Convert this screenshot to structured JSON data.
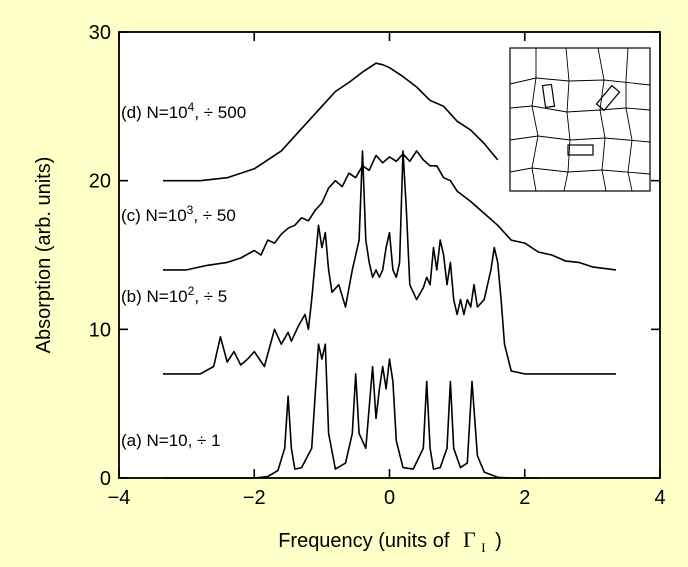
{
  "colors": {
    "background": "#ffffc8",
    "plot_area": "#ffffff",
    "ink": "#000000"
  },
  "chart_data": {
    "type": "line",
    "title": "",
    "xlabel_text": "Frequency (units of",
    "xlabel_symbol": "Γ",
    "xlabel_subscript": "I",
    "xlabel_close": ")",
    "ylabel": "Absorption (arb. units)",
    "xlim": [
      -4,
      4
    ],
    "ylim": [
      0,
      30
    ],
    "xticks": [
      -4,
      -2,
      0,
      2,
      4
    ],
    "xtick_labels": [
      "−4",
      "−2",
      "0",
      "2",
      "4"
    ],
    "yticks": [
      0,
      10,
      20,
      30
    ],
    "ytick_labels": [
      "0",
      "10",
      "20",
      "30"
    ],
    "grid": false,
    "series": [
      {
        "label_prefix": "(a) N=10, ÷ 1",
        "label_sup": "",
        "label_suffix": "",
        "x": [
          -3.35,
          -2.5,
          -2.0,
          -1.8,
          -1.65,
          -1.55,
          -1.5,
          -1.45,
          -1.4,
          -1.3,
          -1.15,
          -1.05,
          -1.0,
          -0.95,
          -0.9,
          -0.8,
          -0.65,
          -0.55,
          -0.5,
          -0.45,
          -0.35,
          -0.25,
          -0.2,
          -0.15,
          -0.1,
          -0.05,
          0.0,
          0.05,
          0.1,
          0.2,
          0.35,
          0.5,
          0.55,
          0.6,
          0.65,
          0.75,
          0.85,
          0.9,
          0.95,
          1.05,
          1.15,
          1.22,
          1.3,
          1.4,
          1.6,
          1.8,
          2.2
        ],
        "y": [
          0,
          0,
          0,
          0.1,
          0.5,
          2.0,
          5.5,
          2.0,
          0.6,
          0.7,
          2.0,
          9.0,
          8.0,
          9.0,
          3.0,
          0.6,
          1.0,
          3.0,
          7.0,
          3.0,
          2.0,
          7.5,
          4.0,
          6.0,
          7.5,
          6.0,
          8.0,
          6.5,
          2.5,
          0.7,
          0.6,
          2.0,
          6.5,
          2.0,
          0.6,
          0.7,
          2.0,
          6.5,
          2.0,
          0.7,
          1.0,
          6.5,
          1.5,
          0.4,
          0.05,
          0,
          0
        ]
      },
      {
        "label_prefix": "(b) N=10",
        "label_sup": "2",
        "label_suffix": ", ÷ 5",
        "x": [
          -3.35,
          -2.8,
          -2.6,
          -2.5,
          -2.4,
          -2.3,
          -2.2,
          -2.1,
          -2.0,
          -1.85,
          -1.7,
          -1.6,
          -1.5,
          -1.45,
          -1.35,
          -1.25,
          -1.2,
          -1.15,
          -1.05,
          -1.0,
          -0.95,
          -0.9,
          -0.85,
          -0.75,
          -0.65,
          -0.55,
          -0.5,
          -0.45,
          -0.4,
          -0.35,
          -0.3,
          -0.25,
          -0.2,
          -0.15,
          -0.1,
          -0.05,
          0.0,
          0.05,
          0.1,
          0.15,
          0.2,
          0.25,
          0.3,
          0.4,
          0.5,
          0.55,
          0.6,
          0.65,
          0.7,
          0.75,
          0.8,
          0.85,
          0.9,
          0.95,
          1.0,
          1.05,
          1.1,
          1.15,
          1.2,
          1.25,
          1.3,
          1.4,
          1.5,
          1.55,
          1.6,
          1.65,
          1.7,
          1.8,
          2.0,
          2.4,
          3.35
        ],
        "y": [
          7,
          7,
          7.5,
          9.5,
          7.8,
          8.5,
          7.6,
          8.0,
          8.5,
          7.5,
          10.0,
          9.0,
          9.8,
          9.2,
          10.2,
          11.0,
          10.0,
          12.0,
          17.0,
          15.5,
          16.5,
          14.0,
          12.5,
          13.0,
          11.5,
          14.0,
          15.0,
          16.0,
          22.0,
          16.0,
          14.5,
          13.5,
          14.0,
          13.5,
          14.0,
          15.5,
          16.5,
          14.0,
          13.5,
          14.5,
          22.0,
          18.0,
          13.0,
          12.0,
          12.8,
          13.5,
          13.0,
          15.5,
          14.0,
          16.0,
          15.0,
          13.0,
          14.5,
          12.0,
          11.0,
          12.0,
          11.0,
          12.0,
          11.5,
          13.0,
          11.5,
          12.0,
          14.0,
          15.5,
          14.5,
          12.0,
          9.0,
          7.2,
          7,
          7,
          7
        ]
      },
      {
        "label_prefix": "(c) N=10",
        "label_sup": "3",
        "label_suffix": ", ÷ 50",
        "x": [
          -3.35,
          -3.0,
          -2.7,
          -2.4,
          -2.2,
          -2.0,
          -1.9,
          -1.8,
          -1.7,
          -1.6,
          -1.5,
          -1.4,
          -1.3,
          -1.2,
          -1.1,
          -1.0,
          -0.9,
          -0.8,
          -0.7,
          -0.6,
          -0.5,
          -0.4,
          -0.3,
          -0.2,
          -0.1,
          0.0,
          0.1,
          0.2,
          0.3,
          0.4,
          0.5,
          0.6,
          0.7,
          0.8,
          0.9,
          1.0,
          1.2,
          1.4,
          1.6,
          1.8,
          2.0,
          2.2,
          2.4,
          2.6,
          2.8,
          3.0,
          3.35
        ],
        "y": [
          14,
          14,
          14.3,
          14.5,
          14.8,
          15.3,
          15.0,
          16.0,
          15.8,
          16.4,
          16.8,
          17.0,
          17.5,
          17.3,
          18.0,
          18.5,
          19.5,
          20.0,
          19.6,
          20.5,
          20.2,
          21.0,
          20.7,
          21.7,
          21.2,
          21.6,
          21.3,
          21.8,
          21.3,
          22.0,
          21.4,
          21.0,
          21.0,
          20.2,
          20.0,
          19.3,
          18.6,
          17.8,
          17.0,
          16.0,
          15.8,
          15.2,
          15.0,
          14.6,
          14.5,
          14.2,
          14
        ]
      },
      {
        "label_prefix": "(d) N=10",
        "label_sup": "4",
        "label_suffix": ", ÷ 500",
        "x": [
          -3.35,
          -2.8,
          -2.4,
          -2.0,
          -1.6,
          -1.3,
          -1.0,
          -0.8,
          -0.6,
          -0.4,
          -0.2,
          -0.1,
          0.0,
          0.2,
          0.4,
          0.6,
          0.8,
          1.0,
          1.2,
          1.4,
          1.6
        ],
        "y": [
          20,
          20,
          20.2,
          20.8,
          22.0,
          23.5,
          25.0,
          26.0,
          26.6,
          27.3,
          27.9,
          27.8,
          27.6,
          27.0,
          26.3,
          25.4,
          25.0,
          24.0,
          23.4,
          22.5,
          21.4
        ]
      }
    ],
    "inset": "Voronoi-style grid with three highlighted rectangles"
  }
}
